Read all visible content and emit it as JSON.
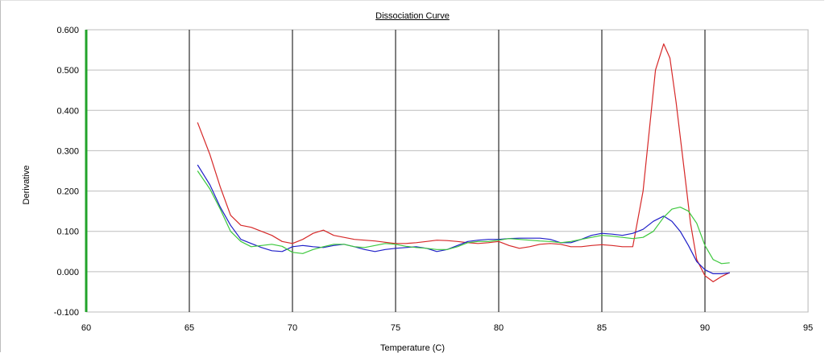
{
  "chart_data": {
    "type": "line",
    "title": "Dissociation Curve",
    "xlabel": "Temperature (C)",
    "ylabel": "Derivative",
    "xlim": [
      60,
      95
    ],
    "ylim": [
      -0.1,
      0.6
    ],
    "xticks": [
      60,
      65,
      70,
      75,
      80,
      85,
      90,
      95
    ],
    "yticks": [
      -0.1,
      0.0,
      0.1,
      0.2,
      0.3,
      0.4,
      0.5,
      0.6
    ],
    "x_tick_labels": [
      "60",
      "65",
      "70",
      "75",
      "80",
      "85",
      "90",
      "95"
    ],
    "y_tick_labels": [
      "-0.100",
      "0.000",
      "0.100",
      "0.200",
      "0.300",
      "0.400",
      "0.500",
      "0.600"
    ],
    "grid": true,
    "series": [
      {
        "color": "#d62828",
        "x": [
          65.4,
          66.0,
          66.5,
          67.0,
          67.5,
          68.0,
          68.5,
          69.0,
          69.5,
          70.0,
          70.5,
          71.0,
          71.5,
          72.0,
          72.5,
          73.0,
          73.5,
          74.0,
          74.5,
          75.0,
          75.5,
          76.0,
          76.5,
          77.0,
          77.5,
          78.0,
          78.5,
          79.0,
          79.5,
          80.0,
          80.5,
          81.0,
          81.5,
          82.0,
          82.5,
          83.0,
          83.5,
          84.0,
          84.5,
          85.0,
          85.5,
          86.0,
          86.5,
          87.0,
          87.3,
          87.6,
          88.0,
          88.3,
          88.6,
          89.0,
          89.3,
          89.6,
          90.0,
          90.4,
          90.8,
          91.2
        ],
        "y": [
          0.37,
          0.29,
          0.21,
          0.14,
          0.115,
          0.11,
          0.1,
          0.09,
          0.075,
          0.07,
          0.08,
          0.095,
          0.103,
          0.09,
          0.085,
          0.08,
          0.078,
          0.076,
          0.073,
          0.07,
          0.07,
          0.072,
          0.075,
          0.078,
          0.077,
          0.075,
          0.072,
          0.07,
          0.072,
          0.075,
          0.065,
          0.058,
          0.062,
          0.068,
          0.07,
          0.068,
          0.062,
          0.062,
          0.065,
          0.067,
          0.065,
          0.062,
          0.062,
          0.2,
          0.35,
          0.5,
          0.565,
          0.53,
          0.42,
          0.25,
          0.12,
          0.03,
          -0.01,
          -0.025,
          -0.012,
          -0.002
        ]
      },
      {
        "color": "#1f1fc8",
        "x": [
          65.4,
          66.0,
          66.5,
          67.0,
          67.5,
          68.0,
          68.5,
          69.0,
          69.5,
          70.0,
          70.5,
          71.0,
          71.5,
          72.0,
          72.5,
          73.0,
          73.5,
          74.0,
          74.5,
          75.0,
          75.5,
          76.0,
          76.5,
          77.0,
          77.5,
          78.0,
          78.5,
          79.0,
          79.5,
          80.0,
          80.5,
          81.0,
          81.5,
          82.0,
          82.5,
          83.0,
          83.5,
          84.0,
          84.5,
          85.0,
          85.5,
          86.0,
          86.5,
          87.0,
          87.5,
          88.0,
          88.4,
          88.8,
          89.2,
          89.6,
          90.0,
          90.4,
          90.8,
          91.2
        ],
        "y": [
          0.265,
          0.215,
          0.16,
          0.115,
          0.08,
          0.07,
          0.06,
          0.052,
          0.05,
          0.062,
          0.065,
          0.062,
          0.06,
          0.065,
          0.068,
          0.062,
          0.055,
          0.05,
          0.055,
          0.058,
          0.06,
          0.062,
          0.058,
          0.05,
          0.055,
          0.065,
          0.075,
          0.078,
          0.08,
          0.08,
          0.082,
          0.083,
          0.083,
          0.083,
          0.08,
          0.072,
          0.072,
          0.08,
          0.09,
          0.095,
          0.093,
          0.09,
          0.095,
          0.105,
          0.125,
          0.138,
          0.125,
          0.1,
          0.065,
          0.025,
          0.005,
          -0.005,
          -0.005,
          -0.003
        ]
      },
      {
        "color": "#3cc83c",
        "x": [
          65.4,
          66.0,
          66.5,
          67.0,
          67.5,
          68.0,
          68.5,
          69.0,
          69.5,
          70.0,
          70.5,
          71.0,
          71.5,
          72.0,
          72.5,
          73.0,
          73.5,
          74.0,
          74.5,
          75.0,
          75.5,
          76.0,
          76.5,
          77.0,
          77.5,
          78.0,
          78.5,
          79.0,
          79.5,
          80.0,
          80.5,
          81.0,
          81.5,
          82.0,
          82.5,
          83.0,
          83.5,
          84.0,
          84.5,
          85.0,
          85.5,
          86.0,
          86.5,
          87.0,
          87.5,
          88.0,
          88.4,
          88.8,
          89.2,
          89.6,
          90.0,
          90.4,
          90.8,
          91.2
        ],
        "y": [
          0.25,
          0.205,
          0.155,
          0.1,
          0.075,
          0.062,
          0.065,
          0.068,
          0.063,
          0.048,
          0.045,
          0.055,
          0.062,
          0.068,
          0.068,
          0.062,
          0.06,
          0.065,
          0.07,
          0.068,
          0.063,
          0.06,
          0.058,
          0.055,
          0.055,
          0.062,
          0.072,
          0.075,
          0.075,
          0.078,
          0.082,
          0.08,
          0.078,
          0.076,
          0.075,
          0.072,
          0.075,
          0.08,
          0.085,
          0.09,
          0.088,
          0.085,
          0.082,
          0.085,
          0.1,
          0.135,
          0.155,
          0.16,
          0.15,
          0.12,
          0.065,
          0.03,
          0.02,
          0.022
        ]
      }
    ]
  }
}
